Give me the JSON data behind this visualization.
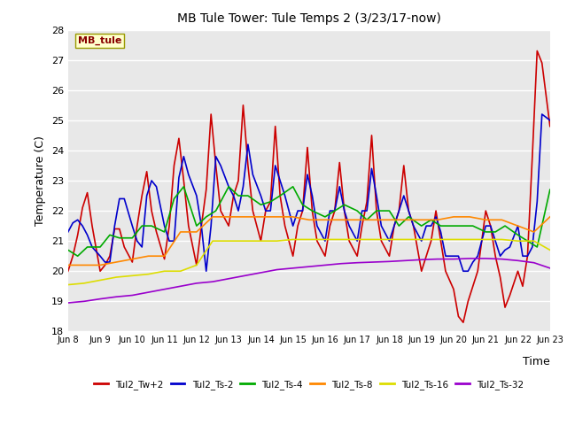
{
  "title": "MB Tule Tower: Tule Temps 2 (3/23/17-now)",
  "xlabel": "Time",
  "ylabel": "Temperature (C)",
  "ylim": [
    18.0,
    28.0
  ],
  "yticks": [
    18.0,
    19.0,
    20.0,
    21.0,
    22.0,
    23.0,
    24.0,
    25.0,
    26.0,
    27.0,
    28.0
  ],
  "background_color": "#ffffff",
  "plot_bg_color": "#e8e8e8",
  "grid_color": "#ffffff",
  "x_labels": [
    "Jun 8",
    "Jun 9",
    "Jun 10",
    "Jun 11",
    "Jun 12",
    "Jun 13",
    "Jun 14",
    "Jun 15",
    "Jun 16",
    "Jun 17",
    "Jun 18",
    "Jun 19",
    "Jun 20",
    "Jun 21",
    "Jun 22",
    "Jun 23"
  ],
  "legend_label": "MB_tule",
  "series": [
    {
      "name": "Tul2_Tw+2",
      "color": "#cc0000",
      "lw": 1.2,
      "x": [
        0,
        0.15,
        0.3,
        0.45,
        0.6,
        0.75,
        1.0,
        1.15,
        1.3,
        1.45,
        1.6,
        1.75,
        2.0,
        2.15,
        2.3,
        2.45,
        2.6,
        2.75,
        3.0,
        3.15,
        3.3,
        3.45,
        3.6,
        3.75,
        4.0,
        4.15,
        4.3,
        4.45,
        4.6,
        4.75,
        5.0,
        5.15,
        5.3,
        5.45,
        5.6,
        5.75,
        6.0,
        6.15,
        6.3,
        6.45,
        6.6,
        6.75,
        7.0,
        7.15,
        7.3,
        7.45,
        7.6,
        7.75,
        8.0,
        8.15,
        8.3,
        8.45,
        8.6,
        8.75,
        9.0,
        9.15,
        9.3,
        9.45,
        9.6,
        9.75,
        10.0,
        10.15,
        10.3,
        10.45,
        10.6,
        10.75,
        11.0,
        11.15,
        11.3,
        11.45,
        11.6,
        11.75,
        12.0,
        12.15,
        12.3,
        12.45,
        12.6,
        12.75,
        13.0,
        13.15,
        13.3,
        13.45,
        13.6,
        13.75,
        14.0,
        14.15,
        14.3,
        14.45,
        14.6,
        14.75,
        15.0
      ],
      "y": [
        20.0,
        20.5,
        21.2,
        22.1,
        22.6,
        21.5,
        20.0,
        20.2,
        20.5,
        21.4,
        21.4,
        20.8,
        20.3,
        21.5,
        22.5,
        23.3,
        22.0,
        21.3,
        20.4,
        21.5,
        23.5,
        24.4,
        23.0,
        21.5,
        20.2,
        21.5,
        22.7,
        25.2,
        23.5,
        22.0,
        21.5,
        22.5,
        23.0,
        25.5,
        23.5,
        22.0,
        21.0,
        22.0,
        22.3,
        24.8,
        22.5,
        21.5,
        20.5,
        21.5,
        22.0,
        24.1,
        22.0,
        21.0,
        20.5,
        21.5,
        22.0,
        23.6,
        22.0,
        21.0,
        20.5,
        21.5,
        22.3,
        24.5,
        22.0,
        21.0,
        20.5,
        21.5,
        22.0,
        23.5,
        22.0,
        21.5,
        20.0,
        20.5,
        21.0,
        22.0,
        21.0,
        20.0,
        19.4,
        18.5,
        18.3,
        19.0,
        19.5,
        20.0,
        22.0,
        21.5,
        20.5,
        19.8,
        18.8,
        19.2,
        20.0,
        19.5,
        20.5,
        23.8,
        27.3,
        26.9,
        24.8
      ]
    },
    {
      "name": "Tul2_Ts-2",
      "color": "#0000cc",
      "lw": 1.2,
      "x": [
        0,
        0.15,
        0.3,
        0.45,
        0.6,
        0.75,
        1.0,
        1.15,
        1.3,
        1.45,
        1.6,
        1.75,
        2.0,
        2.15,
        2.3,
        2.45,
        2.6,
        2.75,
        3.0,
        3.15,
        3.3,
        3.45,
        3.6,
        3.75,
        4.0,
        4.15,
        4.3,
        4.45,
        4.6,
        4.75,
        5.0,
        5.15,
        5.3,
        5.45,
        5.6,
        5.75,
        6.0,
        6.15,
        6.3,
        6.45,
        6.6,
        6.75,
        7.0,
        7.15,
        7.3,
        7.45,
        7.6,
        7.75,
        8.0,
        8.15,
        8.3,
        8.45,
        8.6,
        8.75,
        9.0,
        9.15,
        9.3,
        9.45,
        9.6,
        9.75,
        10.0,
        10.15,
        10.3,
        10.45,
        10.6,
        10.75,
        11.0,
        11.15,
        11.3,
        11.45,
        11.6,
        11.75,
        12.0,
        12.15,
        12.3,
        12.45,
        12.6,
        12.75,
        13.0,
        13.15,
        13.3,
        13.45,
        13.6,
        13.75,
        14.0,
        14.15,
        14.3,
        14.45,
        14.6,
        14.75,
        15.0
      ],
      "y": [
        21.3,
        21.6,
        21.7,
        21.5,
        21.2,
        20.8,
        20.5,
        20.3,
        20.3,
        21.5,
        22.4,
        22.4,
        21.5,
        21.0,
        20.8,
        22.5,
        23.0,
        22.8,
        21.5,
        21.0,
        21.0,
        23.1,
        23.8,
        23.2,
        22.5,
        21.5,
        20.0,
        21.5,
        23.8,
        23.5,
        22.8,
        22.5,
        22.0,
        22.8,
        24.2,
        23.2,
        22.5,
        22.0,
        22.0,
        23.5,
        23.0,
        22.5,
        21.5,
        22.0,
        22.0,
        23.2,
        22.5,
        21.5,
        21.0,
        22.0,
        22.0,
        22.8,
        22.0,
        21.5,
        21.0,
        22.0,
        22.0,
        23.4,
        22.5,
        21.5,
        21.0,
        21.5,
        22.0,
        22.5,
        22.0,
        21.5,
        21.0,
        21.5,
        21.5,
        21.8,
        21.3,
        20.5,
        20.5,
        20.5,
        20.0,
        20.0,
        20.3,
        20.5,
        21.5,
        21.5,
        21.0,
        20.5,
        20.7,
        20.8,
        21.5,
        20.5,
        20.5,
        20.8,
        22.3,
        25.2,
        25.0
      ]
    },
    {
      "name": "Tul2_Ts-4",
      "color": "#00aa00",
      "lw": 1.2,
      "x": [
        0,
        0.3,
        0.6,
        1.0,
        1.3,
        1.6,
        2.0,
        2.3,
        2.6,
        3.0,
        3.3,
        3.6,
        4.0,
        4.3,
        4.6,
        5.0,
        5.3,
        5.6,
        6.0,
        6.3,
        6.6,
        7.0,
        7.3,
        7.6,
        8.0,
        8.3,
        8.6,
        9.0,
        9.3,
        9.6,
        10.0,
        10.3,
        10.6,
        11.0,
        11.3,
        11.6,
        12.0,
        12.3,
        12.6,
        13.0,
        13.3,
        13.6,
        14.0,
        14.3,
        14.6,
        15.0
      ],
      "y": [
        20.7,
        20.5,
        20.8,
        20.8,
        21.2,
        21.1,
        21.1,
        21.5,
        21.5,
        21.3,
        22.4,
        22.8,
        21.5,
        21.8,
        22.0,
        22.8,
        22.5,
        22.5,
        22.2,
        22.3,
        22.5,
        22.8,
        22.2,
        22.0,
        21.8,
        22.0,
        22.2,
        22.0,
        21.7,
        22.0,
        22.0,
        21.5,
        21.8,
        21.5,
        21.7,
        21.5,
        21.5,
        21.5,
        21.5,
        21.3,
        21.3,
        21.5,
        21.2,
        21.0,
        20.8,
        22.7
      ]
    },
    {
      "name": "Tul2_Ts-8",
      "color": "#ff8800",
      "lw": 1.2,
      "x": [
        0,
        0.5,
        1.0,
        1.5,
        2.0,
        2.5,
        3.0,
        3.5,
        4.0,
        4.5,
        5.0,
        5.5,
        6.0,
        6.5,
        7.0,
        7.5,
        8.0,
        8.5,
        9.0,
        9.5,
        10.0,
        10.5,
        11.0,
        11.5,
        12.0,
        12.5,
        13.0,
        13.5,
        14.0,
        14.5,
        15.0
      ],
      "y": [
        20.2,
        20.2,
        20.2,
        20.3,
        20.4,
        20.5,
        20.5,
        21.3,
        21.3,
        21.8,
        21.8,
        21.8,
        21.8,
        21.8,
        21.8,
        21.7,
        21.7,
        21.7,
        21.7,
        21.7,
        21.7,
        21.7,
        21.7,
        21.7,
        21.8,
        21.8,
        21.7,
        21.7,
        21.5,
        21.3,
        21.8
      ]
    },
    {
      "name": "Tul2_Ts-16",
      "color": "#dddd00",
      "lw": 1.2,
      "x": [
        0,
        0.5,
        1.0,
        1.5,
        2.0,
        2.5,
        3.0,
        3.5,
        4.0,
        4.5,
        5.0,
        5.5,
        6.0,
        6.5,
        7.0,
        7.5,
        8.0,
        8.5,
        9.0,
        9.5,
        10.0,
        10.5,
        11.0,
        11.5,
        12.0,
        12.5,
        13.0,
        13.5,
        14.0,
        14.5,
        15.0
      ],
      "y": [
        19.55,
        19.6,
        19.7,
        19.8,
        19.85,
        19.9,
        20.0,
        20.0,
        20.2,
        21.0,
        21.0,
        21.0,
        21.0,
        21.0,
        21.05,
        21.05,
        21.05,
        21.05,
        21.05,
        21.05,
        21.05,
        21.05,
        21.05,
        21.05,
        21.05,
        21.05,
        21.05,
        21.05,
        21.0,
        21.0,
        20.7
      ]
    },
    {
      "name": "Tul2_Ts-32",
      "color": "#9900cc",
      "lw": 1.2,
      "x": [
        0,
        0.5,
        1.0,
        1.5,
        2.0,
        2.5,
        3.0,
        3.5,
        4.0,
        4.5,
        5.0,
        5.5,
        6.0,
        6.5,
        7.0,
        7.5,
        8.0,
        8.5,
        9.0,
        9.5,
        10.0,
        10.5,
        11.0,
        11.5,
        12.0,
        12.5,
        13.0,
        13.5,
        14.0,
        14.5,
        15.0
      ],
      "y": [
        18.95,
        19.0,
        19.08,
        19.15,
        19.2,
        19.3,
        19.4,
        19.5,
        19.6,
        19.65,
        19.75,
        19.85,
        19.95,
        20.05,
        20.1,
        20.15,
        20.2,
        20.25,
        20.28,
        20.3,
        20.32,
        20.35,
        20.38,
        20.4,
        20.4,
        20.42,
        20.42,
        20.4,
        20.35,
        20.28,
        20.1
      ]
    }
  ]
}
